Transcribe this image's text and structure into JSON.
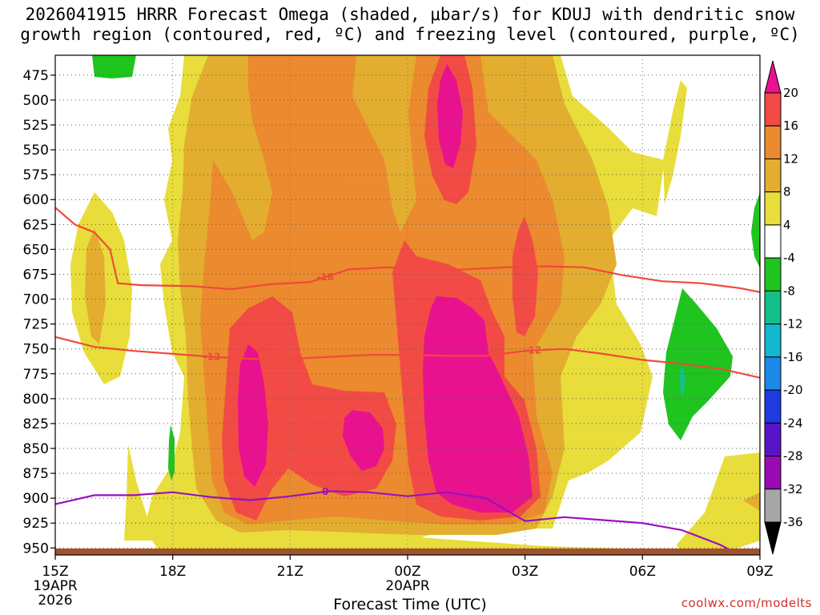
{
  "title": "2026041915 HRRR Forecast Omega (shaded, μbar/s) for KDUJ with dendritic snow\ngrowth region (contoured, red, ºC) and freezing level (contoured, purple, ºC)",
  "credit": "coolwx.com/modelts",
  "colors": {
    "c4_8": "#e8dd3a",
    "c8_12": "#e3ad30",
    "c12_16": "#eb8a2e",
    "c16_20": "#f24b45",
    "c20": "#e8128e",
    "neg4_8": "#1fc41f",
    "neg8_12": "#14c08a",
    "neg12_16": "#12b8d0",
    "neg16_20": "#1c88e8",
    "neg20_24": "#1e3ae0",
    "neg24_28": "#5a14c8",
    "neg28_32": "#9a0ab4",
    "neg32_36": "#a6a6a6",
    "neg36": "#000000",
    "snow_contour": "#ef4a3a",
    "freezing_contour": "#9a10c0",
    "terrain": "#a0522d"
  },
  "chart_data": {
    "type": "heatmap",
    "title": "2026041915 HRRR Forecast Omega (shaded, μbar/s) for KDUJ with dendritic snow growth region (contoured, red, ºC) and freezing level (contoured, purple, ºC)",
    "xlabel": "Forecast Time (UTC)",
    "ylabel": "",
    "x_ticks": [
      {
        "label": "15Z",
        "sub": [
          "19APR",
          "2026"
        ],
        "hour": 0
      },
      {
        "label": "18Z",
        "sub": [],
        "hour": 3
      },
      {
        "label": "21Z",
        "sub": [],
        "hour": 6
      },
      {
        "label": "00Z",
        "sub": [
          "20APR"
        ],
        "hour": 9
      },
      {
        "label": "03Z",
        "sub": [],
        "hour": 12
      },
      {
        "label": "06Z",
        "sub": [],
        "hour": 15
      },
      {
        "label": "09Z",
        "sub": [],
        "hour": 18
      }
    ],
    "xlim_hours": [
      0,
      18
    ],
    "y_ticks": [
      475,
      500,
      525,
      550,
      575,
      600,
      625,
      650,
      675,
      700,
      725,
      750,
      775,
      800,
      825,
      850,
      875,
      900,
      925,
      950
    ],
    "ylim_hPa": [
      455,
      957
    ],
    "grid": true,
    "colorbar": {
      "labels": [
        "20",
        "16",
        "12",
        "8",
        "4",
        "-4",
        "-8",
        "-12",
        "-16",
        "-20",
        "-24",
        "-28",
        "-32",
        "-36"
      ],
      "bands": [
        {
          "range": ">20",
          "color": "#e8128e"
        },
        {
          "range": "16-20",
          "color": "#f24b45"
        },
        {
          "range": "12-16",
          "color": "#eb8a2e"
        },
        {
          "range": "8-12",
          "color": "#e3ad30"
        },
        {
          "range": "4-8",
          "color": "#e8dd3a"
        },
        {
          "range": "-4-4",
          "color": "#ffffff"
        },
        {
          "range": "-8--4",
          "color": "#1fc41f"
        },
        {
          "range": "-12--8",
          "color": "#14c08a"
        },
        {
          "range": "-16--12",
          "color": "#12b8d0"
        },
        {
          "range": "-20--16",
          "color": "#1c88e8"
        },
        {
          "range": "-24--20",
          "color": "#1e3ae0"
        },
        {
          "range": "-28--24",
          "color": "#5a14c8"
        },
        {
          "range": "-32--28",
          "color": "#9a0ab4"
        },
        {
          "range": "-36--32",
          "color": "#a6a6a6"
        },
        {
          "range": "<-36",
          "color": "#000000"
        }
      ]
    },
    "contours": [
      {
        "name": "-18",
        "label": "-18",
        "color": "#ef4a3a",
        "points": [
          [
            0,
            608
          ],
          [
            0.5,
            625
          ],
          [
            1,
            633
          ],
          [
            1.4,
            650
          ],
          [
            1.6,
            684
          ],
          [
            2.2,
            686
          ],
          [
            3.5,
            687
          ],
          [
            4.5,
            690
          ],
          [
            5.5,
            685
          ],
          [
            6.5,
            683
          ],
          [
            7.5,
            670
          ],
          [
            8.5,
            668
          ],
          [
            9.5,
            672
          ],
          [
            10.5,
            670
          ],
          [
            11.5,
            668
          ],
          [
            12.5,
            667
          ],
          [
            13.5,
            668
          ],
          [
            14.5,
            676
          ],
          [
            15.5,
            682
          ],
          [
            16.5,
            684
          ],
          [
            17.5,
            689
          ],
          [
            18,
            693
          ]
        ]
      },
      {
        "name": "-12",
        "label": "-12",
        "color": "#ef4a3a",
        "points": [
          [
            0,
            738
          ],
          [
            1,
            748
          ],
          [
            2,
            752
          ],
          [
            3,
            755
          ],
          [
            4,
            758
          ],
          [
            5,
            760
          ],
          [
            6,
            760
          ],
          [
            7,
            758
          ],
          [
            8,
            756
          ],
          [
            9,
            756
          ],
          [
            10,
            757
          ],
          [
            11,
            757
          ],
          [
            12,
            752
          ],
          [
            13,
            750
          ],
          [
            14,
            755
          ],
          [
            15,
            761
          ],
          [
            16,
            765
          ],
          [
            17,
            770
          ],
          [
            18,
            779
          ]
        ]
      },
      {
        "name": "0",
        "label": "0",
        "color": "#9a10c0",
        "points": [
          [
            0,
            906
          ],
          [
            1,
            897
          ],
          [
            2,
            897
          ],
          [
            3,
            894
          ],
          [
            4,
            899
          ],
          [
            5,
            902
          ],
          [
            6,
            898
          ],
          [
            7,
            893
          ],
          [
            8,
            894
          ],
          [
            9,
            898
          ],
          [
            10,
            894
          ],
          [
            11,
            900
          ],
          [
            12,
            923
          ],
          [
            13,
            919
          ],
          [
            14,
            922
          ],
          [
            15,
            925
          ],
          [
            16,
            932
          ],
          [
            17,
            947
          ],
          [
            17.6,
            960
          ]
        ]
      }
    ]
  }
}
